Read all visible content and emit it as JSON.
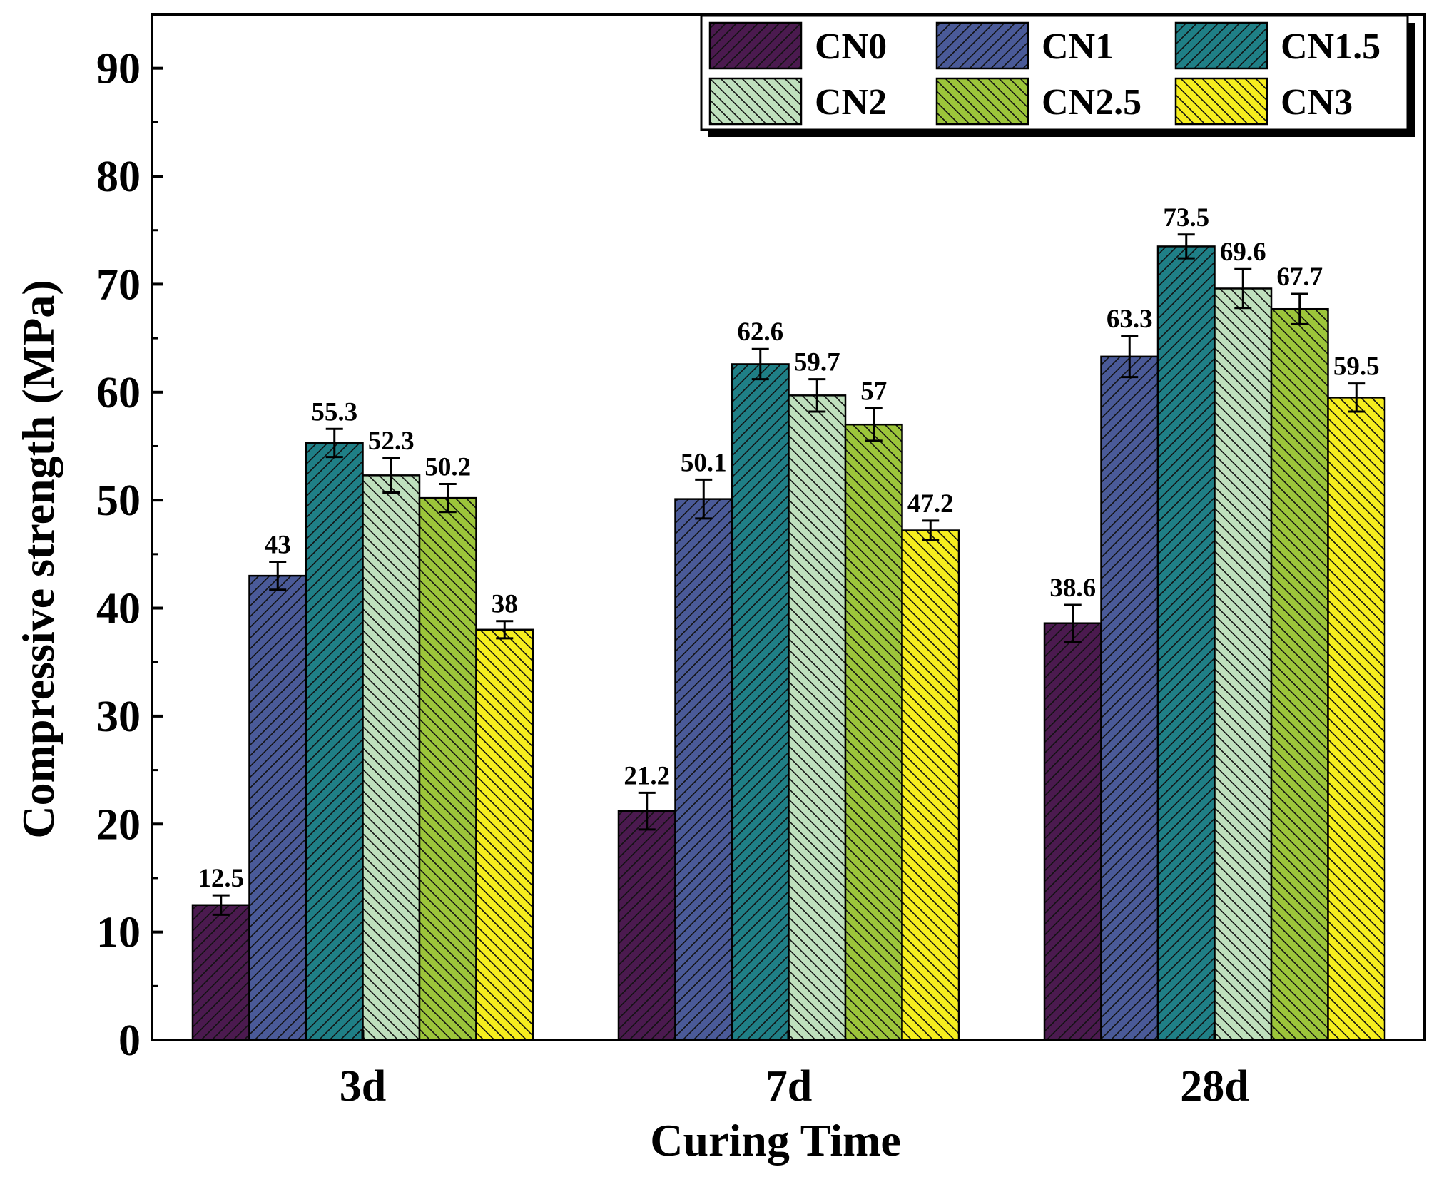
{
  "chart_data": {
    "type": "bar",
    "title": "",
    "xlabel": "Curing Time",
    "ylabel": "Compressive strength (MPa)",
    "categories": [
      "3d",
      "7d",
      "28d"
    ],
    "ylim": [
      0,
      95
    ],
    "yticks": [
      0,
      10,
      20,
      30,
      40,
      50,
      60,
      70,
      80,
      90
    ],
    "grid": false,
    "legend_position": "top-right",
    "legend_columns": 3,
    "series": [
      {
        "name": "CN0",
        "color": "#4b1a4f",
        "hatch": "forward",
        "values": [
          12.5,
          21.2,
          38.6
        ],
        "errors": [
          0.9,
          1.7,
          1.7
        ],
        "labels": [
          "12.5",
          "21.2",
          "38.6"
        ]
      },
      {
        "name": "CN1",
        "color": "#4a5a98",
        "hatch": "forward",
        "values": [
          43,
          50.1,
          63.3
        ],
        "errors": [
          1.3,
          1.8,
          1.9
        ],
        "labels": [
          "43",
          "50.1",
          "63.3"
        ]
      },
      {
        "name": "CN1.5",
        "color": "#1f7f86",
        "hatch": "forward",
        "values": [
          55.3,
          62.6,
          73.5
        ],
        "errors": [
          1.3,
          1.4,
          1.1
        ],
        "labels": [
          "55.3",
          "62.6",
          "73.5"
        ]
      },
      {
        "name": "CN2",
        "color": "#bfe0bd",
        "hatch": "back",
        "values": [
          52.3,
          59.7,
          69.6
        ],
        "errors": [
          1.6,
          1.5,
          1.8
        ],
        "labels": [
          "52.3",
          "59.7",
          "69.6"
        ]
      },
      {
        "name": "CN2.5",
        "color": "#9cc53a",
        "hatch": "back",
        "values": [
          50.2,
          57,
          67.7
        ],
        "errors": [
          1.3,
          1.5,
          1.4
        ],
        "labels": [
          "50.2",
          "57",
          "67.7"
        ]
      },
      {
        "name": "CN3",
        "color": "#f6ee1e",
        "hatch": "back",
        "values": [
          38,
          47.2,
          59.5
        ],
        "errors": [
          0.8,
          0.9,
          1.3
        ],
        "labels": [
          "38",
          "47.2",
          "59.5"
        ]
      }
    ]
  }
}
